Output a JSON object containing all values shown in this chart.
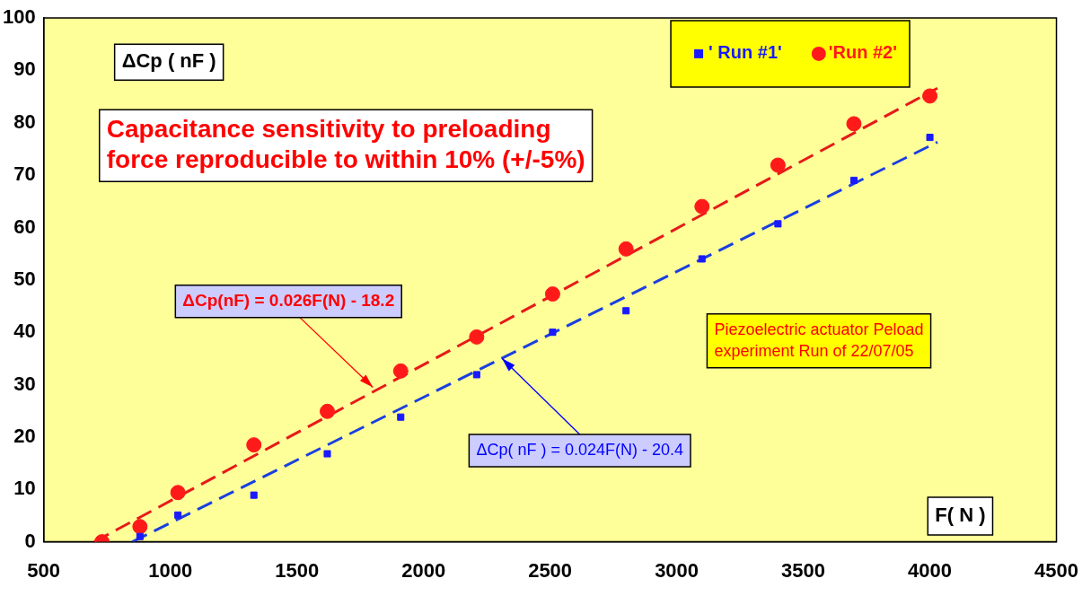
{
  "chart_data": {
    "type": "scatter",
    "xlabel": "F( N )",
    "ylabel": "ΔCp ( nF )",
    "xlim": [
      500,
      4500
    ],
    "xticks": [
      500,
      1000,
      1500,
      2000,
      2500,
      3000,
      3500,
      4000,
      4500
    ],
    "ylim": [
      0,
      100
    ],
    "yticks": [
      0,
      10,
      20,
      30,
      40,
      50,
      60,
      70,
      80,
      90,
      100
    ],
    "grid": false,
    "legend": "top right",
    "series": [
      {
        "name": "' Run #1'",
        "marker": "square",
        "color": "#1a1aff",
        "x": [
          880,
          1030,
          1330,
          1620,
          1910,
          2210,
          2510,
          2800,
          3100,
          3400,
          3700,
          4000
        ],
        "values": [
          1.0,
          5.1,
          8.9,
          16.8,
          23.8,
          31.9,
          40,
          44.1,
          54,
          60.7,
          69,
          77.2
        ]
      },
      {
        "name": "'Run #2'",
        "marker": "circle",
        "color": "#ff1a1a",
        "x": [
          730,
          880,
          1030,
          1330,
          1620,
          1910,
          2210,
          2510,
          2800,
          3100,
          3400,
          3700,
          4000
        ],
        "values": [
          0,
          2.9,
          9.4,
          18.5,
          24.9,
          32.6,
          39.1,
          47.3,
          55.9,
          64,
          71.9,
          79.8,
          85.1
        ]
      },
      {
        "type": "line",
        "marker": "none",
        "line_style": "dashed",
        "color": "#1a3fe0",
        "x": [
          850,
          4030
        ],
        "values": [
          0,
          76.3
        ]
      },
      {
        "type": "line",
        "marker": "none",
        "line_style": "dashed",
        "color": "#e61a1a",
        "x": [
          700,
          4030
        ],
        "values": [
          0,
          86.6
        ]
      }
    ],
    "annotations": [
      "Capacitance sensitivity to preloading force reproducible to within 10% (+/-5%)",
      "Piezoelectric actuator Peload experiment Run of 22/07/05",
      {
        "text": "ΔCp(nF) = 0.026F(N) - 18.2",
        "x": 1800,
        "y": 29.5
      },
      {
        "text": "ΔCp( nF ) = 0.024F(N) - 20.4",
        "x": 2310,
        "y": 35
      }
    ]
  }
}
